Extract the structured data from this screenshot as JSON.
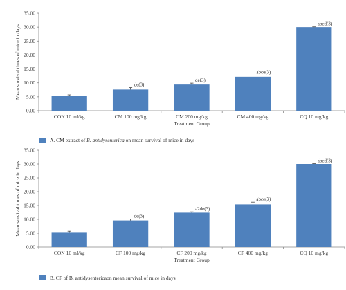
{
  "colors": {
    "bar": "#4f81bd",
    "axis": "#888888",
    "error_bar": "#444444"
  },
  "chart_data": [
    {
      "type": "bar",
      "categories": [
        "CON 10 ml/kg",
        "CM 100 mg/kg",
        "CM 200 mg/kg",
        "CM 400 mg/kg",
        "CQ 10 mg/kg"
      ],
      "values": [
        5.4,
        7.6,
        9.4,
        12.2,
        30.0
      ],
      "errors": [
        0.3,
        0.7,
        0.5,
        0.6,
        0.1
      ],
      "data_labels": [
        "",
        "de(3)",
        "de(3)",
        "abce(3)",
        "abcd(3)"
      ],
      "yticks": [
        "0.00",
        "5.00",
        "10.00",
        "15.00",
        "20.00",
        "25.00",
        "30.00",
        "35.00"
      ],
      "ylim": [
        0,
        35
      ],
      "ylabel": "Mean survival times of mice in days",
      "xlabel": "Treatment Group",
      "legend": {
        "prefix": "A. CM extract of ",
        "italic": "B. antidysenterica",
        "suffix": " on mean survival of mice in days",
        "position": "bottom-left"
      },
      "grid": false
    },
    {
      "type": "bar",
      "categories": [
        "CON 10 ml/kg",
        "CF 100 mg/kg",
        "CF 200 mg/kg",
        "CF 400 mg/kg",
        "CQ 10 mg/kg"
      ],
      "values": [
        5.4,
        9.6,
        12.4,
        15.4,
        30.0
      ],
      "errors": [
        0.3,
        0.5,
        0.3,
        0.8,
        0.1
      ],
      "data_labels": [
        "",
        "de(3)",
        "a2de(3)",
        "abce(3)",
        "abcd(3)"
      ],
      "yticks": [
        "0.00",
        "5.00",
        "10.00",
        "15.00",
        "20.00",
        "25.00",
        "30.00",
        "35.00"
      ],
      "ylim": [
        0,
        35
      ],
      "ylabel": "Mean survival times of mice in days",
      "xlabel": "Treatment Group",
      "legend": {
        "prefix": "B. CF of B. antidysentericaon mean survival of mice in days",
        "italic": "",
        "suffix": "",
        "position": "bottom-left"
      },
      "grid": false
    }
  ]
}
